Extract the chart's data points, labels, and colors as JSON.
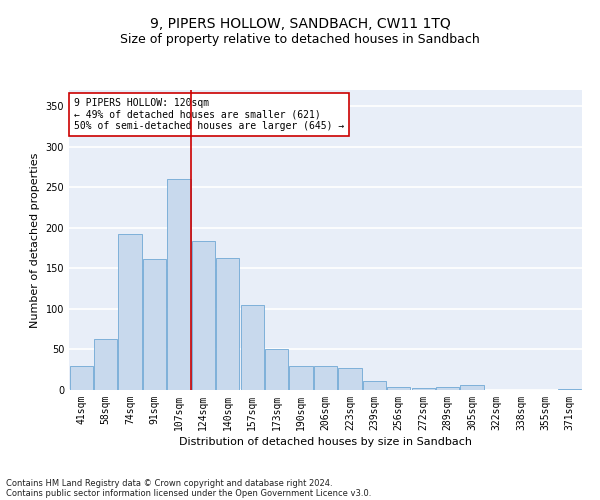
{
  "title": "9, PIPERS HOLLOW, SANDBACH, CW11 1TQ",
  "subtitle": "Size of property relative to detached houses in Sandbach",
  "xlabel": "Distribution of detached houses by size in Sandbach",
  "ylabel": "Number of detached properties",
  "categories": [
    "41sqm",
    "58sqm",
    "74sqm",
    "91sqm",
    "107sqm",
    "124sqm",
    "140sqm",
    "157sqm",
    "173sqm",
    "190sqm",
    "206sqm",
    "223sqm",
    "239sqm",
    "256sqm",
    "272sqm",
    "289sqm",
    "305sqm",
    "322sqm",
    "338sqm",
    "355sqm",
    "371sqm"
  ],
  "values": [
    30,
    63,
    192,
    161,
    260,
    184,
    163,
    105,
    50,
    30,
    30,
    27,
    11,
    4,
    2,
    4,
    6,
    0,
    0,
    0,
    1
  ],
  "bar_color": "#c8d9ed",
  "bar_edge_color": "#6fa8d5",
  "vline_x": 4.5,
  "vline_color": "#cc0000",
  "annotation_text": "9 PIPERS HOLLOW: 120sqm\n← 49% of detached houses are smaller (621)\n50% of semi-detached houses are larger (645) →",
  "annotation_box_color": "#ffffff",
  "annotation_box_edge": "#cc0000",
  "ylim": [
    0,
    370
  ],
  "yticks": [
    0,
    50,
    100,
    150,
    200,
    250,
    300,
    350
  ],
  "background_color": "#e8eef8",
  "grid_color": "#ffffff",
  "footer_line1": "Contains HM Land Registry data © Crown copyright and database right 2024.",
  "footer_line2": "Contains public sector information licensed under the Open Government Licence v3.0.",
  "title_fontsize": 10,
  "subtitle_fontsize": 9,
  "xlabel_fontsize": 8,
  "ylabel_fontsize": 8,
  "annotation_fontsize": 7,
  "tick_fontsize": 7,
  "footer_fontsize": 6
}
